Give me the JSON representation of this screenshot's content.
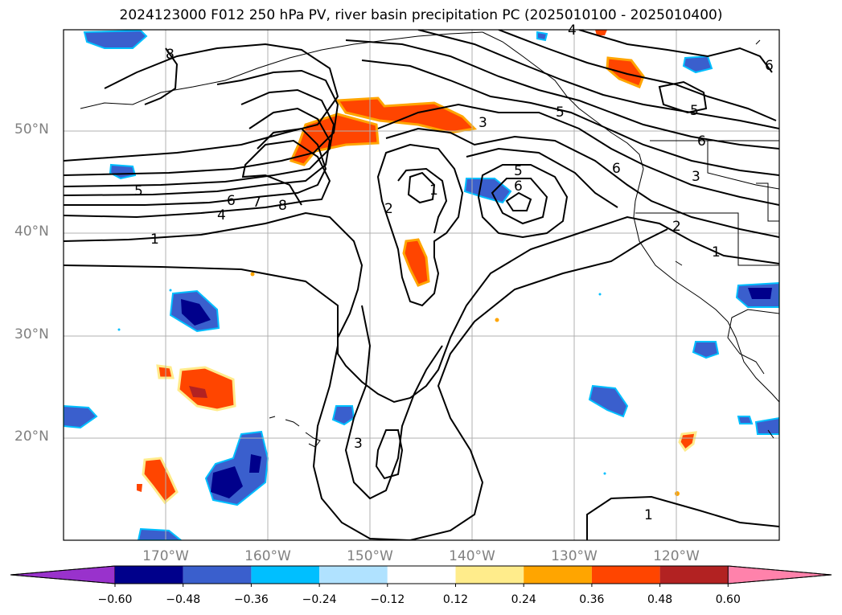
{
  "title": "2024123000 F012 250 hPa PV, river basin precipitation PC (2025010100 - 2025010400)",
  "lat_labels": [
    "50°N",
    "40°N",
    "30°N",
    "20°N"
  ],
  "lon_labels": [
    "170°W",
    "160°W",
    "150°W",
    "140°W",
    "130°W",
    "120°W"
  ],
  "contour_labels": [
    "8",
    "5",
    "6",
    "7",
    "8",
    "4",
    "1",
    "2",
    "1",
    "3",
    "5",
    "6",
    "3",
    "5",
    "6",
    "2",
    "1",
    "3",
    "1",
    "4",
    "6",
    "5",
    "6"
  ],
  "colorbar": {
    "colors": [
      "#9932cc",
      "#00008b",
      "#3a5fcd",
      "#00bfff",
      "#b0e2ff",
      "#ffffff",
      "#ffec8b",
      "#ffa500",
      "#ff4500",
      "#b22222",
      "#ff82ab"
    ],
    "tick_labels": [
      "−0.60",
      "−0.48",
      "−0.36",
      "−0.24",
      "−0.12",
      "0.12",
      "0.24",
      "0.36",
      "0.48",
      "0.60"
    ]
  },
  "colors": {
    "land_outline": "#000000",
    "grid": "#b0b0b0",
    "contour": "#000000"
  }
}
